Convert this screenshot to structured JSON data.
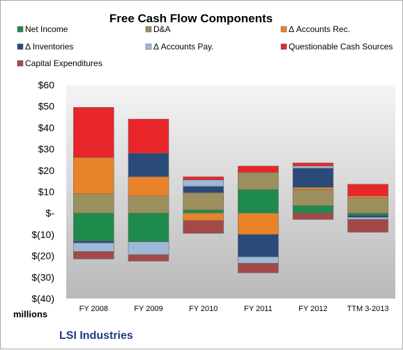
{
  "chart_data": {
    "type": "bar",
    "stacked": true,
    "title": "Free Cash Flow Components",
    "unit_label": "millions",
    "footer": "LSI Industries",
    "categories": [
      "FY 2008",
      "FY 2009",
      "FY 2010",
      "FY 2011",
      "FY 2012",
      "TTM 3-2013"
    ],
    "ylim": [
      -40,
      60
    ],
    "yticks": [
      60,
      50,
      40,
      30,
      20,
      10,
      0,
      -10,
      -20,
      -30,
      -40
    ],
    "ytick_labels": [
      "$60",
      "$50",
      "$40",
      "$30",
      "$20",
      "$10",
      "$-",
      "$(10)",
      "$(20)",
      "$(30)",
      "$(40)"
    ],
    "grid": false,
    "legend_position": "top",
    "series": [
      {
        "name": "Net Income",
        "color": "#1e8a4c",
        "values": [
          -13,
          -13.5,
          1.5,
          11,
          3.5,
          -1
        ]
      },
      {
        "name": "D&A",
        "color": "#9c8f5e",
        "values": [
          9,
          8,
          8,
          8,
          7.5,
          7
        ]
      },
      {
        "name": "Δ Accounts Rec.",
        "color": "#e8832a",
        "values": [
          17,
          9,
          -3.5,
          -10,
          1,
          1
        ]
      },
      {
        "name": "Δ Inventories",
        "color": "#2a4a78",
        "values": [
          -1,
          11,
          3,
          -10.5,
          9,
          -1
        ]
      },
      {
        "name": "Δ Accounts Pay.",
        "color": "#9fb8d8",
        "values": [
          -4,
          -6,
          3,
          -3,
          1,
          -1
        ]
      },
      {
        "name": "Questionable Cash Sources",
        "color": "#e8262a",
        "values": [
          23.5,
          16,
          1.5,
          3,
          1.5,
          5.5
        ]
      },
      {
        "name": "Capital Expenditures",
        "color": "#a34a48",
        "values": [
          -3.5,
          -3,
          -6,
          -4.5,
          -3,
          -6
        ]
      }
    ]
  }
}
